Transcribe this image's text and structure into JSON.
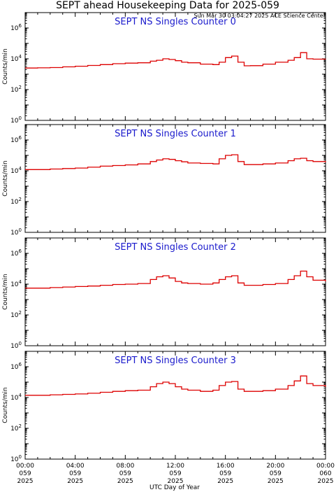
{
  "title": "SEPT ahead Housekeeping Data for 2025-059",
  "timestamp": "Sun Mar 30 03:04:27 2025 ACE Science Center",
  "colors": {
    "line": "#dd0000",
    "panel_title": "#1a1acc",
    "axes": "#000000"
  },
  "chart_data": [
    {
      "type": "line",
      "panel_title": "SEPT NS Singles Counter 0",
      "ylabel": "Counts/min",
      "yscale": "log",
      "ylim_exp": [
        0,
        7
      ],
      "ytick_exps": [
        0,
        2,
        4,
        6
      ],
      "xlim_hours": [
        0,
        24
      ],
      "series": [
        {
          "x_hours": [
            0,
            1,
            2,
            3,
            4,
            5,
            6,
            7,
            8,
            9,
            10,
            10.5,
            11,
            11.5,
            12,
            12.5,
            13,
            14,
            15,
            15.5,
            16,
            16.5,
            17,
            17.5,
            18,
            19,
            20,
            21,
            21.5,
            22,
            22.5,
            23,
            24
          ],
          "y": [
            2500,
            2600,
            2700,
            3000,
            3300,
            3700,
            4200,
            4800,
            5200,
            5500,
            7000,
            8000,
            10000,
            9000,
            7500,
            6000,
            5500,
            4500,
            4200,
            6000,
            12000,
            15000,
            6000,
            3500,
            3600,
            4500,
            6000,
            8000,
            12000,
            25000,
            10000,
            9500,
            9000
          ]
        }
      ]
    },
    {
      "type": "line",
      "panel_title": "SEPT NS Singles Counter 1",
      "ylabel": "Counts/min",
      "yscale": "log",
      "ylim_exp": [
        0,
        7
      ],
      "ytick_exps": [
        0,
        2,
        4,
        6
      ],
      "xlim_hours": [
        0,
        24
      ],
      "series": [
        {
          "x_hours": [
            0,
            1,
            2,
            3,
            4,
            5,
            6,
            7,
            8,
            9,
            10,
            10.5,
            11,
            11.5,
            12,
            12.5,
            13,
            14,
            15,
            15.5,
            16,
            16.5,
            17,
            17.5,
            18,
            19,
            20,
            21,
            21.5,
            22,
            22.5,
            23,
            24
          ],
          "y": [
            12000,
            12000,
            13000,
            14000,
            15000,
            17000,
            20000,
            22000,
            24000,
            28000,
            40000,
            50000,
            60000,
            55000,
            45000,
            38000,
            32000,
            30000,
            28000,
            60000,
            100000,
            110000,
            40000,
            25000,
            25000,
            28000,
            32000,
            45000,
            60000,
            65000,
            45000,
            40000,
            35000
          ]
        }
      ]
    },
    {
      "type": "line",
      "panel_title": "SEPT NS Singles Counter 2",
      "ylabel": "Counts/min",
      "yscale": "log",
      "ylim_exp": [
        0,
        7
      ],
      "ytick_exps": [
        0,
        2,
        4,
        6
      ],
      "xlim_hours": [
        0,
        24
      ],
      "series": [
        {
          "x_hours": [
            0,
            1,
            2,
            3,
            4,
            5,
            6,
            7,
            8,
            9,
            10,
            10.5,
            11,
            11.5,
            12,
            12.5,
            13,
            14,
            15,
            15.5,
            16,
            16.5,
            17,
            17.5,
            18,
            19,
            20,
            21,
            21.5,
            22,
            22.5,
            23,
            24
          ],
          "y": [
            5500,
            5500,
            6000,
            6500,
            7000,
            7500,
            8500,
            9500,
            10000,
            11000,
            20000,
            30000,
            35000,
            25000,
            15000,
            12000,
            11000,
            10000,
            12000,
            20000,
            30000,
            35000,
            12000,
            8500,
            8500,
            9500,
            11000,
            20000,
            35000,
            70000,
            30000,
            18000,
            15000
          ]
        }
      ]
    },
    {
      "type": "line",
      "panel_title": "SEPT NS Singles Counter 3",
      "ylabel": "Counts/min",
      "yscale": "log",
      "ylim_exp": [
        0,
        7
      ],
      "ytick_exps": [
        0,
        2,
        4,
        6
      ],
      "xlim_hours": [
        0,
        24
      ],
      "series": [
        {
          "x_hours": [
            0,
            1,
            2,
            3,
            4,
            5,
            6,
            7,
            8,
            9,
            10,
            10.5,
            11,
            11.5,
            12,
            12.5,
            13,
            14,
            15,
            15.5,
            16,
            16.5,
            17,
            17.5,
            18,
            19,
            20,
            21,
            21.5,
            22,
            22.5,
            23,
            24
          ],
          "y": [
            14000,
            14000,
            15000,
            16000,
            17000,
            19000,
            22000,
            25000,
            28000,
            30000,
            50000,
            80000,
            100000,
            80000,
            50000,
            35000,
            30000,
            25000,
            30000,
            60000,
            100000,
            110000,
            35000,
            25000,
            25000,
            28000,
            35000,
            60000,
            120000,
            250000,
            80000,
            60000,
            50000
          ]
        }
      ]
    }
  ],
  "x_axis": {
    "label": "UTC Day of Year",
    "ticks": [
      {
        "hour": 0,
        "time": "00:00",
        "doy": "059",
        "year": "2025"
      },
      {
        "hour": 4,
        "time": "04:00",
        "doy": "059",
        "year": "2025"
      },
      {
        "hour": 8,
        "time": "08:00",
        "doy": "059",
        "year": "2025"
      },
      {
        "hour": 12,
        "time": "12:00",
        "doy": "059",
        "year": "2025"
      },
      {
        "hour": 16,
        "time": "16:00",
        "doy": "059",
        "year": "2025"
      },
      {
        "hour": 20,
        "time": "20:00",
        "doy": "059",
        "year": "2025"
      },
      {
        "hour": 24,
        "time": "00:00",
        "doy": "060",
        "year": "2025"
      }
    ]
  }
}
